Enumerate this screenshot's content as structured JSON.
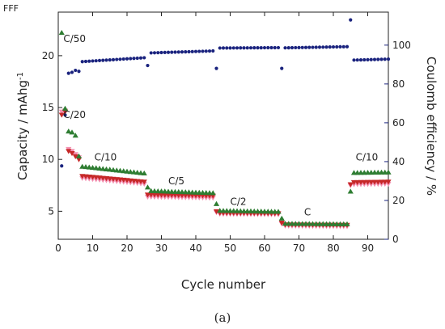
{
  "corner_text": "FFF",
  "caption": "(a)",
  "chart_data": {
    "type": "scatter",
    "title": "",
    "xlabel": "Cycle number",
    "ylabel": "Capacity / mAhg-1",
    "ylabel_right": "Coulomb efficiency / %",
    "xlim": [
      0,
      96
    ],
    "ylim": [
      2.3,
      24.2
    ],
    "ylim_right": [
      0,
      117
    ],
    "x_ticks": [
      0,
      10,
      20,
      30,
      40,
      50,
      60,
      70,
      80,
      90
    ],
    "y_ticks": [
      5,
      10,
      15,
      20
    ],
    "y_ticks_right": [
      0,
      20,
      40,
      60,
      80,
      100
    ],
    "grid": false,
    "legend": "none",
    "rate_labels": [
      {
        "text": "C/50",
        "x": 1.5,
        "y": 21.3
      },
      {
        "text": "C/20",
        "x": 1.5,
        "y": 14.0
      },
      {
        "text": "C/10",
        "x": 10.5,
        "y": 9.9
      },
      {
        "text": "C/5",
        "x": 32.0,
        "y": 7.6
      },
      {
        "text": "C/2",
        "x": 50.0,
        "y": 5.6
      },
      {
        "text": "C",
        "x": 71.5,
        "y": 4.6
      },
      {
        "text": "C/10",
        "x": 86.5,
        "y": 9.9
      }
    ],
    "capacity_segments": [
      {
        "from": 1,
        "to": 1,
        "green": 22.2,
        "red": 14.3,
        "pink": 14.6
      },
      {
        "from": 2,
        "to": 2,
        "green": 14.9,
        "red": 14.6,
        "pink": 14.7
      },
      {
        "from": 3,
        "to": 3,
        "green": 12.7,
        "red": 10.8,
        "pink": 11.0
      },
      {
        "from": 4,
        "to": 4,
        "green": 12.6,
        "red": 10.6,
        "pink": 10.8
      },
      {
        "from": 5,
        "to": 5,
        "green": 12.3,
        "red": 10.3,
        "pink": 10.5
      },
      {
        "from": 6,
        "to": 6,
        "green": 10.3,
        "red": 10.0,
        "pink": 10.2
      },
      {
        "from": 7,
        "to": 25,
        "green": [
          9.3,
          8.65
        ],
        "red": [
          8.4,
          7.85
        ],
        "pink": [
          8.2,
          7.65
        ]
      },
      {
        "from": 26,
        "to": 26,
        "green": 7.3,
        "red": 6.6,
        "pink": 6.4
      },
      {
        "from": 27,
        "to": 45,
        "green": [
          6.95,
          6.75
        ],
        "red": [
          6.6,
          6.5
        ],
        "pink": [
          6.4,
          6.3
        ]
      },
      {
        "from": 46,
        "to": 46,
        "green": 5.7,
        "red": 5.0,
        "pink": 4.9
      },
      {
        "from": 47,
        "to": 64,
        "green": [
          5.05,
          4.95
        ],
        "red": [
          4.85,
          4.8
        ],
        "pink": [
          4.75,
          4.7
        ]
      },
      {
        "from": 65,
        "to": 65,
        "green": 4.3,
        "red": 3.9,
        "pink": 3.8
      },
      {
        "from": 66,
        "to": 84,
        "green": [
          3.8,
          3.75
        ],
        "red": [
          3.72,
          3.68
        ],
        "pink": [
          3.6,
          3.55
        ]
      },
      {
        "from": 85,
        "to": 85,
        "green": 6.9,
        "red": 7.6,
        "pink": 7.5
      },
      {
        "from": 86,
        "to": 96,
        "green": [
          8.7,
          8.75
        ],
        "red": [
          7.8,
          7.85
        ],
        "pink": [
          7.6,
          7.65
        ]
      }
    ],
    "coulomb_efficiency": [
      {
        "x": 1,
        "y": 37.8
      },
      {
        "x": 2,
        "y": 64.0
      },
      {
        "x": 3,
        "y": 85.5
      },
      {
        "x": 4,
        "y": 86.0
      },
      {
        "x": 5,
        "y": 87.0
      },
      {
        "x": 6,
        "y": 86.5
      },
      {
        "from": 7,
        "to": 25,
        "y": [
          91.5,
          93.5
        ]
      },
      {
        "x": 26,
        "y": 89.5
      },
      {
        "from": 27,
        "to": 45,
        "y": [
          96.0,
          97.0
        ]
      },
      {
        "x": 46,
        "y": 88.0
      },
      {
        "from": 47,
        "to": 64,
        "y": [
          98.5,
          98.7
        ]
      },
      {
        "x": 65,
        "y": 88.0
      },
      {
        "from": 66,
        "to": 84,
        "y": [
          98.6,
          99.2
        ]
      },
      {
        "x": 85,
        "y": 113.0
      },
      {
        "from": 86,
        "to": 96,
        "y": [
          92.3,
          92.8
        ]
      }
    ],
    "colors": {
      "green": "#2e7d32",
      "red": "#c62828",
      "pink": "#f48fb1",
      "blue": "#1a237e",
      "axis": "#222222"
    }
  }
}
